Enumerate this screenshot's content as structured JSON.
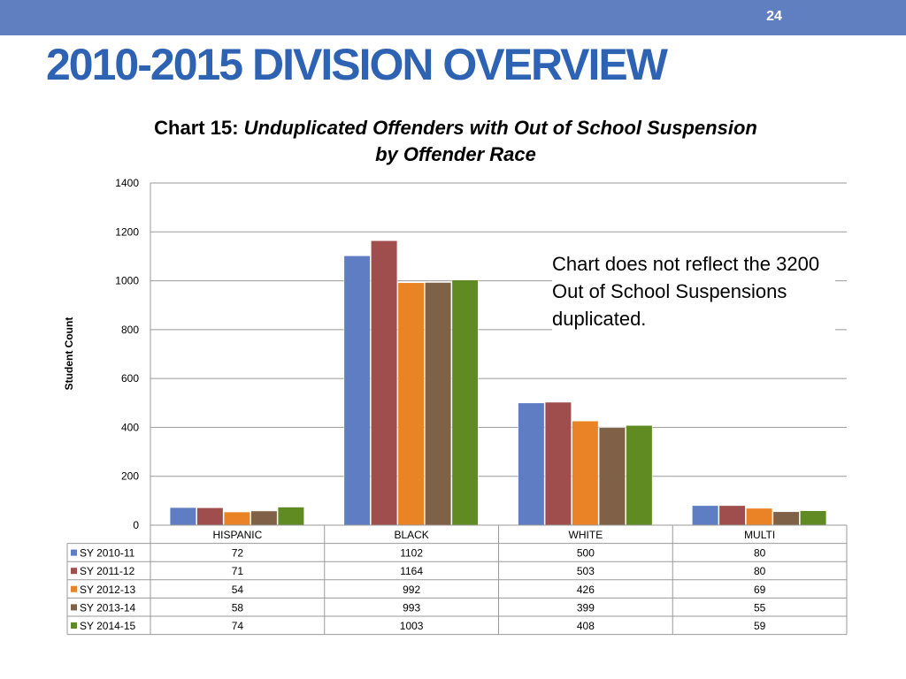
{
  "page_number": "24",
  "slide_title": "2010-2015 DIVISION OVERVIEW",
  "note": "Chart does not reflect  the 3200 Out of School Suspensions duplicated.",
  "chart_data": {
    "type": "bar",
    "title_prefix": "Chart 15:",
    "title_main": "Unduplicated Offenders with  Out of School Suspension by Offender Race",
    "ylabel": "Student Count",
    "xlabel": "",
    "ylim": [
      0,
      1400
    ],
    "yticks": [
      0,
      200,
      400,
      600,
      800,
      1000,
      1200,
      1400
    ],
    "grid": true,
    "legend": "data-table",
    "categories": [
      "HISPANIC",
      "BLACK",
      "WHITE",
      "MULTI"
    ],
    "series": [
      {
        "name": "SY 2010-11",
        "color": "#5e7dc2",
        "values": [
          72,
          1102,
          500,
          80
        ]
      },
      {
        "name": "SY 2011-12",
        "color": "#a04d4e",
        "values": [
          71,
          1164,
          503,
          80
        ]
      },
      {
        "name": "SY 2012-13",
        "color": "#ea8325",
        "values": [
          54,
          992,
          426,
          69
        ]
      },
      {
        "name": "SY 2013-14",
        "color": "#7f6147",
        "values": [
          58,
          993,
          399,
          55
        ]
      },
      {
        "name": "SY 2014-15",
        "color": "#5f8b22",
        "values": [
          74,
          1003,
          408,
          59
        ]
      }
    ]
  }
}
